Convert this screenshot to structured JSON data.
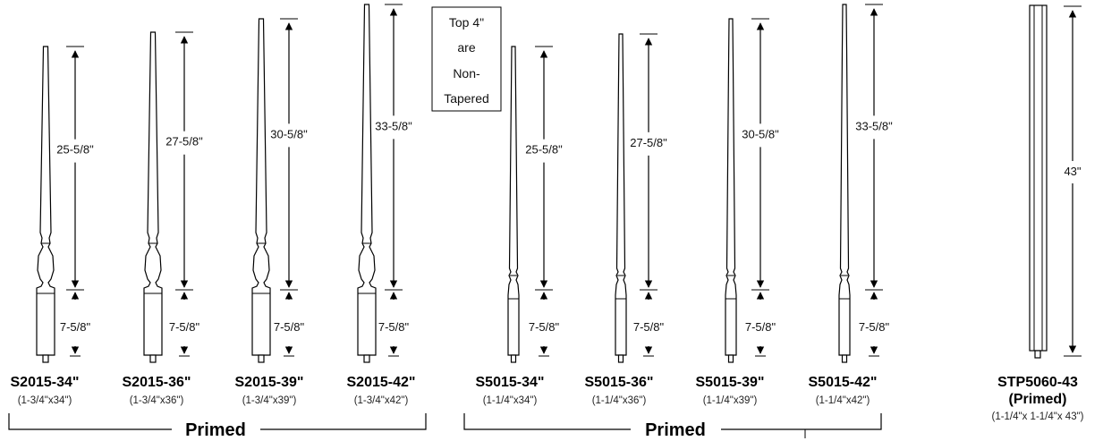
{
  "note": [
    "Top 4\"",
    "are",
    "Non-",
    "Tapered"
  ],
  "balusters": [
    {
      "id": "S2015-34\"",
      "size": "(1-3/4\"x34\")",
      "upper": "25-5/8\"",
      "lower": "7-5/8\"",
      "style": "S2015"
    },
    {
      "id": "S2015-36\"",
      "size": "(1-3/4\"x36\")",
      "upper": "27-5/8\"",
      "lower": "7-5/8\"",
      "style": "S2015"
    },
    {
      "id": "S2015-39\"",
      "size": "(1-3/4\"x39\")",
      "upper": "30-5/8\"",
      "lower": "7-5/8\"",
      "style": "S2015"
    },
    {
      "id": "S2015-42\"",
      "size": "(1-3/4\"x42\")",
      "upper": "33-5/8\"",
      "lower": "7-5/8\"",
      "style": "S2015"
    },
    {
      "id": "S5015-34\"",
      "size": "(1-1/4\"x34\")",
      "upper": "25-5/8\"",
      "lower": "7-5/8\"",
      "style": "S5015"
    },
    {
      "id": "S5015-36\"",
      "size": "(1-1/4\"x36\")",
      "upper": "27-5/8\"",
      "lower": "7-5/8\"",
      "style": "S5015"
    },
    {
      "id": "S5015-39\"",
      "size": "(1-1/4\"x39\")",
      "upper": "30-5/8\"",
      "lower": "7-5/8\"",
      "style": "S5015"
    },
    {
      "id": "S5015-42\"",
      "size": "(1-1/4\"x42\")",
      "upper": "33-5/8\"",
      "lower": "7-5/8\"",
      "style": "S5015"
    }
  ],
  "groups": [
    "Primed",
    "Primed"
  ],
  "square": {
    "id": "STP5060-43",
    "finish": "(Primed)",
    "size": "(1-1/4\"x 1-1/4\"x 43\")",
    "height": "43\""
  }
}
